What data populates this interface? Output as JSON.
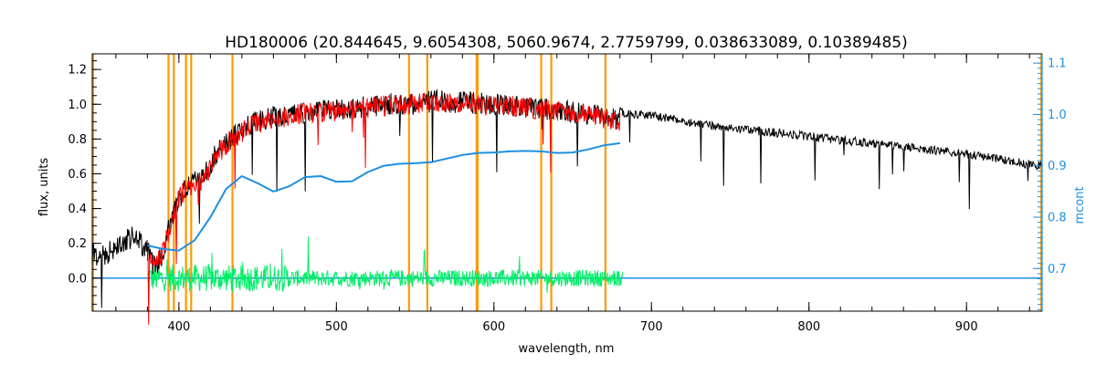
{
  "chart_data": {
    "type": "line",
    "title": "HD180006   (20.844645, 9.6054308, 5060.9674, 2.7759799, 0.038633089, 0.10389485)",
    "xlabel": "wavelength, nm",
    "ylabel": "flux, units",
    "y2label": "mcont",
    "xlim": [
      345,
      948
    ],
    "ylim": [
      -0.19,
      1.29
    ],
    "y2lim": [
      0.617,
      1.118
    ],
    "x_ticks": [
      400,
      500,
      600,
      700,
      800,
      900
    ],
    "y_ticks": [
      0.0,
      0.2,
      0.4,
      0.6,
      0.8,
      1.0,
      1.2
    ],
    "y2_ticks": [
      0.7,
      0.8,
      0.9,
      1.0,
      1.1
    ],
    "colors": {
      "observed": "#000000",
      "model": "#ff0000",
      "continuum": "#1f8fe0",
      "residual": "#00ee66",
      "lines": "#ff9900",
      "axes": "#000000",
      "right_axis": "#1f8fe0"
    },
    "vertical_lines_nm": [
      345.5,
      393.4,
      396.8,
      404.5,
      407.8,
      434.0,
      546.1,
      557.7,
      589.0,
      589.6,
      630.0,
      636.4,
      670.8,
      947.5
    ],
    "series": [
      {
        "key": "observed",
        "x": [
          345,
          350,
          360,
          370,
          375,
          380,
          385,
          390,
          395,
          400,
          405,
          410,
          415,
          420,
          425,
          430,
          435,
          440,
          445,
          450,
          460,
          470,
          480,
          490,
          500,
          510,
          520,
          530,
          540,
          550,
          560,
          570,
          580,
          590,
          600,
          610,
          620,
          630,
          640,
          650,
          660,
          670,
          680,
          690,
          700,
          720,
          740,
          760,
          780,
          800,
          820,
          840,
          860,
          880,
          900,
          920,
          940,
          948
        ],
        "y": [
          0.2,
          0.18,
          0.24,
          0.3,
          0.28,
          0.22,
          0.12,
          0.2,
          0.4,
          0.52,
          0.6,
          0.62,
          0.64,
          0.72,
          0.8,
          0.84,
          0.88,
          0.92,
          0.95,
          0.97,
          0.99,
          1.0,
          1.02,
          1.03,
          1.04,
          1.04,
          1.05,
          1.06,
          1.07,
          1.07,
          1.08,
          1.08,
          1.08,
          1.07,
          1.06,
          1.06,
          1.05,
          1.04,
          1.03,
          1.02,
          1.01,
          1.0,
          0.98,
          0.97,
          0.96,
          0.93,
          0.9,
          0.88,
          0.86,
          0.84,
          0.82,
          0.8,
          0.78,
          0.76,
          0.74,
          0.71,
          0.68,
          0.67
        ]
      },
      {
        "key": "model",
        "x": [
          380,
          385,
          390,
          395,
          400,
          405,
          410,
          415,
          420,
          425,
          430,
          435,
          440,
          445,
          450,
          460,
          470,
          480,
          490,
          500,
          510,
          520,
          530,
          540,
          550,
          560,
          570,
          580,
          590,
          600,
          610,
          620,
          630,
          640,
          650,
          660,
          670,
          680
        ],
        "y": [
          0.18,
          0.12,
          0.22,
          0.38,
          0.52,
          0.58,
          0.6,
          0.62,
          0.7,
          0.78,
          0.83,
          0.86,
          0.9,
          0.93,
          0.95,
          0.97,
          0.99,
          1.01,
          1.02,
          1.02,
          1.03,
          1.04,
          1.05,
          1.06,
          1.06,
          1.07,
          1.07,
          1.07,
          1.06,
          1.05,
          1.05,
          1.04,
          1.03,
          1.02,
          1.01,
          1.0,
          0.98,
          0.96
        ]
      },
      {
        "key": "continuum",
        "axis": "right",
        "x": [
          380,
          390,
          400,
          410,
          420,
          430,
          440,
          450,
          460,
          470,
          480,
          490,
          500,
          510,
          520,
          530,
          540,
          550,
          560,
          570,
          580,
          590,
          600,
          610,
          620,
          630,
          640,
          650,
          660,
          670,
          680
        ],
        "y": [
          0.745,
          0.738,
          0.735,
          0.755,
          0.8,
          0.855,
          0.88,
          0.866,
          0.85,
          0.86,
          0.878,
          0.88,
          0.869,
          0.87,
          0.888,
          0.9,
          0.904,
          0.905,
          0.907,
          0.914,
          0.921,
          0.925,
          0.926,
          0.928,
          0.929,
          0.928,
          0.925,
          0.926,
          0.932,
          0.94,
          0.944
        ]
      },
      {
        "key": "residual",
        "x": [
          380,
          682
        ],
        "y": [
          0.0,
          0.0
        ],
        "amplitude": 0.06
      },
      {
        "key": "baseline",
        "x": [
          345,
          948
        ],
        "y": [
          0.0,
          0.0
        ]
      }
    ]
  }
}
